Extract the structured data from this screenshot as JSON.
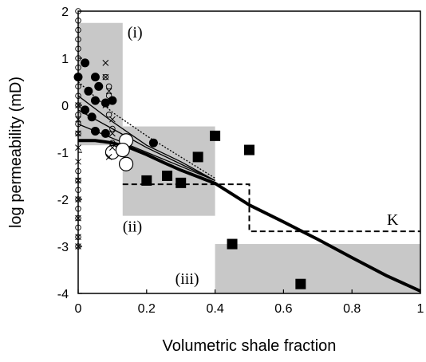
{
  "chart_data": {
    "type": "scatter",
    "xlabel": "Volumetric shale fraction",
    "ylabel": "log permeability (mD)",
    "xlim": [
      0,
      1
    ],
    "ylim": [
      -4,
      2
    ],
    "x_ticks": [
      "0",
      "0.2",
      "0.4",
      "0.6",
      "0.8",
      "1"
    ],
    "y_ticks": [
      "2",
      "1",
      "0",
      "-1",
      "-2",
      "-3",
      "-4"
    ],
    "grid": false,
    "regions": [
      {
        "label": "(i)",
        "x0": 0,
        "x1": 0.13,
        "y0": -0.85,
        "y1": 1.75
      },
      {
        "label": "(ii)",
        "x0": 0.13,
        "x1": 0.4,
        "y0": -2.35,
        "y1": -0.45
      },
      {
        "label": "(iii)",
        "x0": 0.4,
        "x1": 1.0,
        "y0": -4.0,
        "y1": -2.95
      }
    ],
    "series": [
      {
        "marker": "filled-square",
        "points": [
          [
            0.2,
            -1.6
          ],
          [
            0.26,
            -1.5
          ],
          [
            0.3,
            -1.65
          ],
          [
            0.35,
            -1.1
          ],
          [
            0.4,
            -0.65
          ],
          [
            0.5,
            -0.95
          ],
          [
            0.45,
            -2.95
          ],
          [
            0.65,
            -3.8
          ]
        ]
      },
      {
        "marker": "filled-circle",
        "points": [
          [
            0.0,
            0.6
          ],
          [
            0.02,
            0.9
          ],
          [
            0.03,
            0.3
          ],
          [
            0.05,
            0.6
          ],
          [
            0.06,
            0.4
          ],
          [
            0.05,
            0.1
          ],
          [
            0.02,
            -0.1
          ],
          [
            0.04,
            -0.25
          ],
          [
            0.08,
            0.05
          ],
          [
            0.05,
            -0.55
          ],
          [
            0.1,
            0.1
          ],
          [
            0.08,
            -0.6
          ],
          [
            0.22,
            -0.8
          ]
        ]
      },
      {
        "marker": "open-circle-large",
        "points": [
          [
            0.1,
            -1.0
          ],
          [
            0.14,
            -0.75
          ],
          [
            0.14,
            -1.25
          ],
          [
            0.13,
            -0.95
          ]
        ]
      },
      {
        "marker": "open-circle-small",
        "points": [
          [
            0.0,
            2.0
          ],
          [
            0.0,
            1.8
          ],
          [
            0.0,
            1.6
          ],
          [
            0.0,
            1.4
          ],
          [
            0.0,
            1.2
          ],
          [
            0.0,
            1.0
          ],
          [
            0.0,
            0.8
          ],
          [
            0.0,
            0.6
          ],
          [
            0.0,
            0.4
          ],
          [
            0.0,
            0.2
          ],
          [
            0.0,
            0.0
          ],
          [
            0.0,
            -0.2
          ],
          [
            0.0,
            -0.4
          ],
          [
            0.0,
            -0.6
          ],
          [
            0.0,
            -1.4
          ],
          [
            0.0,
            -1.6
          ],
          [
            0.0,
            -1.8
          ],
          [
            0.0,
            -2.0
          ],
          [
            0.0,
            -2.2
          ],
          [
            0.0,
            -2.4
          ],
          [
            0.0,
            -2.6
          ],
          [
            0.0,
            -2.8
          ],
          [
            0.0,
            -3.0
          ],
          [
            0.08,
            0.6
          ],
          [
            0.09,
            0.4
          ],
          [
            0.09,
            0.2
          ],
          [
            0.09,
            -0.2
          ],
          [
            0.1,
            -0.5
          ],
          [
            0.1,
            -0.8
          ]
        ]
      },
      {
        "marker": "cross",
        "points": [
          [
            0.0,
            0.0
          ],
          [
            0.0,
            -0.3
          ],
          [
            0.0,
            -0.6
          ],
          [
            0.0,
            -0.9
          ],
          [
            0.0,
            -1.2
          ],
          [
            0.0,
            -1.6
          ],
          [
            0.0,
            -2.0
          ],
          [
            0.0,
            -2.4
          ],
          [
            0.0,
            -2.8
          ],
          [
            0.0,
            -3.0
          ],
          [
            0.08,
            0.9
          ],
          [
            0.08,
            0.6
          ],
          [
            0.09,
            0.3
          ],
          [
            0.08,
            0.0
          ],
          [
            0.1,
            -0.3
          ],
          [
            0.1,
            -0.6
          ],
          [
            0.1,
            -0.9
          ],
          [
            0.09,
            -1.1
          ]
        ]
      }
    ],
    "curves": [
      {
        "style": "thick-solid",
        "points": [
          [
            0,
            -0.75
          ],
          [
            0.05,
            -0.75
          ],
          [
            0.1,
            -0.8
          ],
          [
            0.15,
            -0.9
          ],
          [
            0.2,
            -1.05
          ],
          [
            0.25,
            -1.22
          ],
          [
            0.3,
            -1.38
          ],
          [
            0.35,
            -1.52
          ],
          [
            0.4,
            -1.66
          ],
          [
            0.5,
            -2.12
          ],
          [
            0.6,
            -2.48
          ],
          [
            0.7,
            -2.85
          ],
          [
            0.8,
            -3.24
          ],
          [
            0.9,
            -3.62
          ],
          [
            1.0,
            -3.95
          ]
        ]
      },
      {
        "style": "thin-solid",
        "points": [
          [
            0,
            -0.4
          ],
          [
            0.1,
            -0.7
          ],
          [
            0.2,
            -1.0
          ],
          [
            0.3,
            -1.3
          ],
          [
            0.35,
            -1.45
          ],
          [
            0.4,
            -1.6
          ]
        ]
      },
      {
        "style": "thin-solid",
        "points": [
          [
            0,
            -0.1
          ],
          [
            0.1,
            -0.5
          ],
          [
            0.2,
            -0.9
          ],
          [
            0.3,
            -1.25
          ],
          [
            0.4,
            -1.6
          ]
        ]
      },
      {
        "style": "thin-solid",
        "points": [
          [
            0,
            0.2
          ],
          [
            0.1,
            -0.35
          ],
          [
            0.2,
            -0.85
          ],
          [
            0.3,
            -1.2
          ],
          [
            0.4,
            -1.6
          ]
        ]
      },
      {
        "style": "thin-dotted",
        "points": [
          [
            0,
            0.5
          ],
          [
            0.1,
            -0.15
          ],
          [
            0.2,
            -0.65
          ],
          [
            0.3,
            -1.1
          ],
          [
            0.4,
            -1.55
          ]
        ]
      }
    ],
    "annotations": [
      {
        "label": "K",
        "style": "dashed",
        "points": [
          [
            0.13,
            -1.68
          ],
          [
            0.5,
            -1.68
          ],
          [
            0.5,
            -2.68
          ],
          [
            1.0,
            -2.68
          ]
        ]
      }
    ]
  }
}
